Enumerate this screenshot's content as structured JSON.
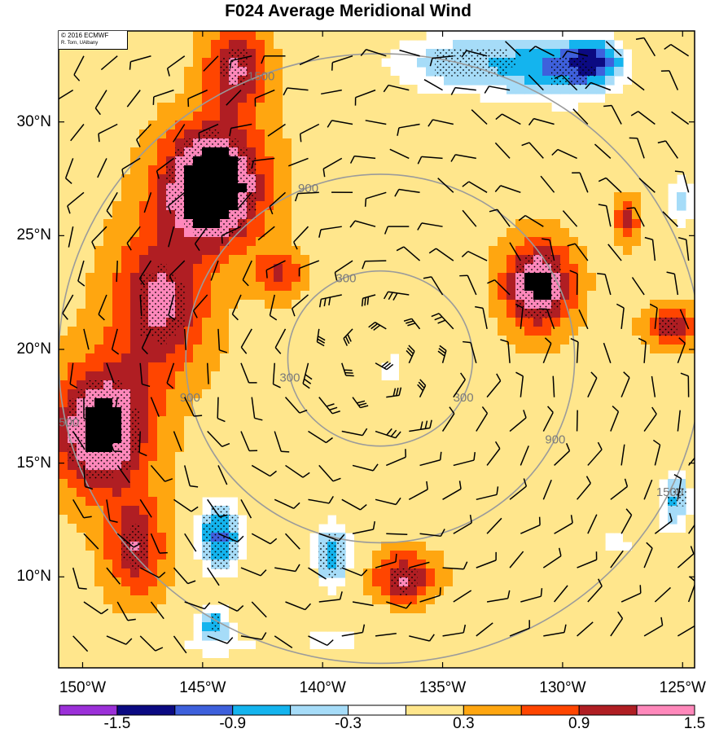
{
  "title": "F024 Average Meridional Wind",
  "credit": {
    "line1": "© 2016 ECMWF",
    "line2": "R. Torn, UAlbany"
  },
  "map": {
    "lon_range": [
      -151,
      -124.5
    ],
    "lat_range": [
      6,
      34
    ],
    "lat_ticks": [
      {
        "value": 30,
        "label": "30°N"
      },
      {
        "value": 25,
        "label": "25°N"
      },
      {
        "value": 20,
        "label": "20°N"
      },
      {
        "value": 15,
        "label": "15°N"
      },
      {
        "value": 10,
        "label": "10°N"
      }
    ],
    "lon_ticks": [
      {
        "value": -150,
        "label": "150°W"
      },
      {
        "value": -145,
        "label": "145°W"
      },
      {
        "value": -140,
        "label": "140°W"
      },
      {
        "value": -135,
        "label": "135°W"
      },
      {
        "value": -130,
        "label": "130°W"
      },
      {
        "value": -125,
        "label": "125°W"
      }
    ],
    "storm_center": {
      "lon": -137.6,
      "lat": 19.6
    },
    "range_rings": [
      {
        "value": 300,
        "label": "300",
        "radius_deg": 3.85
      },
      {
        "value": 900,
        "label": "900",
        "radius_deg": 8.1
      },
      {
        "value": 1500,
        "label": "1500",
        "radius_deg": 13.4
      }
    ],
    "ring_color": "#9b9b9b"
  },
  "colorbar": {
    "colors": [
      "#9b30d8",
      "#0b0a82",
      "#3e60dc",
      "#14b4ee",
      "#a6dcf8",
      "#ffffff",
      "#ffe68c",
      "#ffa610",
      "#ff4500",
      "#b01e23",
      "#ff88bb"
    ],
    "labels": [
      "-1.5",
      "-0.9",
      "-0.3",
      "0.3",
      "0.9",
      "1.5"
    ]
  },
  "chart_data": {
    "type": "heatmap",
    "title": "F024 Average Meridional Wind",
    "xlabel": "",
    "ylabel": "",
    "xlim": [
      -151,
      -124.5
    ],
    "ylim": [
      6,
      34
    ],
    "levels": [
      -1.8,
      -1.5,
      -1.2,
      -0.9,
      -0.6,
      -0.3,
      0.3,
      0.6,
      0.9,
      1.2,
      1.5
    ],
    "colorbar_labels": [
      -1.5,
      -0.9,
      -0.3,
      0.3,
      0.9,
      1.5
    ],
    "features": [
      {
        "lon": -144.6,
        "lat": 27.2,
        "amp": 1.9,
        "sx": 2.1,
        "sy": 2.6,
        "stipple": true
      },
      {
        "lon": -146.8,
        "lat": 22.0,
        "amp": 1.1,
        "sx": 2.0,
        "sy": 3.2,
        "stipple": true
      },
      {
        "lon": -149.2,
        "lat": 16.5,
        "amp": 1.55,
        "sx": 2.0,
        "sy": 2.8,
        "stipple": true
      },
      {
        "lon": -147.8,
        "lat": 11.3,
        "amp": 1.0,
        "sx": 1.2,
        "sy": 2.2,
        "stipple": true
      },
      {
        "lon": -143.6,
        "lat": 32.4,
        "amp": 1.05,
        "sx": 1.3,
        "sy": 2.0,
        "stipple": true
      },
      {
        "lon": -141.8,
        "lat": 23.3,
        "amp": 0.75,
        "sx": 1.0,
        "sy": 1.0,
        "stipple": false
      },
      {
        "lon": -131.0,
        "lat": 22.8,
        "amp": 1.5,
        "sx": 1.4,
        "sy": 1.9,
        "stipple": true
      },
      {
        "lon": -136.6,
        "lat": 9.9,
        "amp": 1.05,
        "sx": 1.3,
        "sy": 1.2,
        "stipple": true
      },
      {
        "lon": -125.5,
        "lat": 21.0,
        "amp": 1.0,
        "sx": 1.0,
        "sy": 0.9,
        "stipple": true
      },
      {
        "lon": -127.3,
        "lat": 25.7,
        "amp": 0.8,
        "sx": 0.5,
        "sy": 1.0,
        "stipple": false
      },
      {
        "lon": -133.8,
        "lat": 32.6,
        "amp": -1.0,
        "sx": 4.2,
        "sy": 1.7,
        "stipple": true
      },
      {
        "lon": -129.6,
        "lat": 32.2,
        "amp": -1.0,
        "sx": 2.4,
        "sy": 1.6,
        "stipple": true
      },
      {
        "lon": -128.6,
        "lat": 32.8,
        "amp": -0.9,
        "sx": 1.2,
        "sy": 0.9,
        "stipple": true
      },
      {
        "lon": -125.0,
        "lat": 26.5,
        "amp": -0.85,
        "sx": 1.0,
        "sy": 1.4,
        "stipple": false
      },
      {
        "lon": -144.3,
        "lat": 11.8,
        "amp": -1.45,
        "sx": 1.1,
        "sy": 1.8,
        "stipple": true
      },
      {
        "lon": -139.6,
        "lat": 11.0,
        "amp": -1.2,
        "sx": 0.9,
        "sy": 1.7,
        "stipple": true
      },
      {
        "lon": -144.6,
        "lat": 8.0,
        "amp": -1.0,
        "sx": 0.7,
        "sy": 0.8,
        "stipple": true
      },
      {
        "lon": -137.0,
        "lat": 19.0,
        "amp": -0.5,
        "sx": 0.4,
        "sy": 0.6,
        "stipple": false
      },
      {
        "lon": -125.3,
        "lat": 13.5,
        "amp": -1.0,
        "sx": 0.7,
        "sy": 1.4,
        "stipple": true
      },
      {
        "lon": -127.8,
        "lat": 11.5,
        "amp": -0.5,
        "sx": 2.8,
        "sy": 2.5,
        "stipple": false
      },
      {
        "lon": -139.5,
        "lat": 7.2,
        "amp": -0.5,
        "sx": 4.5,
        "sy": 1.5,
        "stipple": false
      },
      {
        "lon": -145.0,
        "lat": 7.0,
        "amp": -0.4,
        "sx": 2.5,
        "sy": 1.0,
        "stipple": false
      }
    ],
    "wind_barbs": {
      "lon_start": -150.4,
      "lon_step": 1.4,
      "lat_start": 7.4,
      "lat_step": 1.5,
      "cols": 19,
      "rows": 18
    }
  }
}
